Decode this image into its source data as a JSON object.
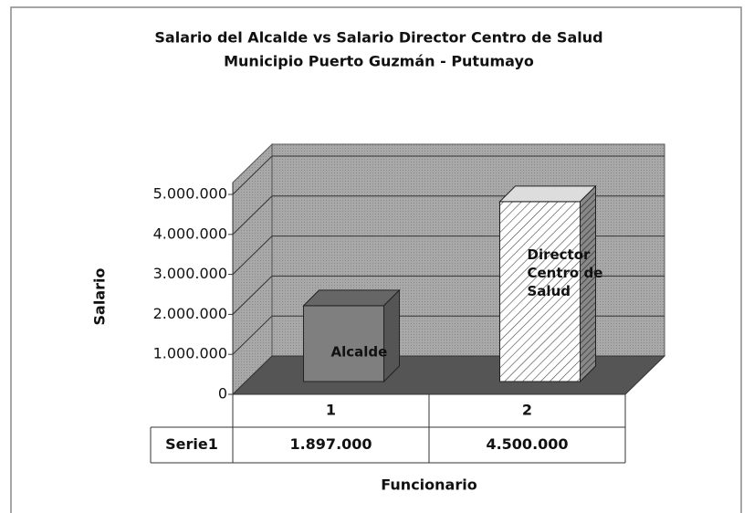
{
  "chart_data": {
    "type": "bar3d",
    "title": [
      "Salario del Alcalde vs Salario Director Centro de Salud",
      "Municipio Puerto Guzmán - Putumayo"
    ],
    "ylabel": "Salario",
    "xlabel": "Funcionario",
    "categories": [
      "1",
      "2"
    ],
    "series": [
      {
        "name": "Serie1",
        "colors": [
          "#7f7f7f",
          "#ffffff"
        ],
        "hatch": [
          false,
          true
        ],
        "values": [
          1897000,
          4500000
        ],
        "value_labels": [
          "1.897.000",
          "4.500.000"
        ]
      }
    ],
    "annotations": [
      [
        "Alcalde"
      ],
      [
        "Director",
        "Centro de",
        "Salud"
      ]
    ],
    "ylim": [
      0,
      5000000
    ],
    "yticks": [
      0,
      {
        "value": 1000000,
        "label": "1.000.000"
      },
      {
        "value": 2000000,
        "label": "2.000.000"
      },
      {
        "value": 3000000,
        "label": "3.000.000"
      },
      {
        "value": 4000000,
        "label": "4.000.000"
      },
      {
        "value": 5000000,
        "label": "5.000.000"
      }
    ],
    "grid": true,
    "data_table": true
  }
}
